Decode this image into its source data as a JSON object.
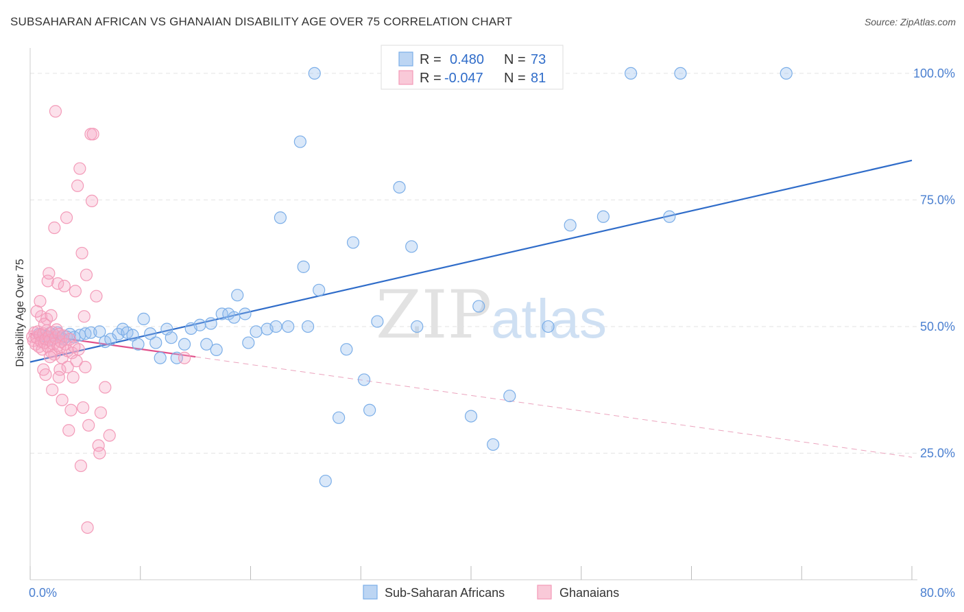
{
  "title": "SUBSAHARAN AFRICAN VS GHANAIAN DISABILITY AGE OVER 75 CORRELATION CHART",
  "source": "Source: ZipAtlas.com",
  "watermark": {
    "zip": "ZIP",
    "atlas": "atlas"
  },
  "chart_data": {
    "type": "scatter",
    "xlim": [
      0,
      80
    ],
    "ylim": [
      0,
      105
    ],
    "ylabel": "Disability Age Over 75",
    "x_ticks": [
      {
        "value": 0,
        "label": "0.0%"
      },
      {
        "value": 80,
        "label": "80.0%"
      }
    ],
    "y_ticks": [
      {
        "value": 25,
        "label": "25.0%"
      },
      {
        "value": 50,
        "label": "50.0%"
      },
      {
        "value": 75,
        "label": "75.0%"
      },
      {
        "value": 100,
        "label": "100.0%"
      }
    ],
    "grid": true,
    "legend_stats": [
      {
        "r_label": "R =",
        "r_value": "0.480",
        "n_label": "N =",
        "n_value": "73"
      },
      {
        "r_label": "R =",
        "r_value": "-0.047",
        "n_label": "N =",
        "n_value": "81"
      }
    ],
    "series": [
      {
        "name": "Sub-Saharan Africans",
        "color": "#7baee8",
        "line_color": "#2f6cc9",
        "trend": {
          "x0": 0,
          "y0": 43.0,
          "x1": 80,
          "y1": 82.8,
          "style": "solid"
        },
        "points": [
          [
            0.8,
            48.5
          ],
          [
            1.2,
            48.2
          ],
          [
            1.5,
            48.0
          ],
          [
            1.8,
            48.7
          ],
          [
            2.0,
            47.5
          ],
          [
            2.2,
            48.3
          ],
          [
            2.5,
            48.8
          ],
          [
            2.8,
            47.8
          ],
          [
            3.0,
            47.5
          ],
          [
            3.3,
            48.0
          ],
          [
            3.6,
            48.5
          ],
          [
            4.0,
            47.9
          ],
          [
            4.5,
            48.3
          ],
          [
            5.0,
            48.6
          ],
          [
            5.5,
            48.8
          ],
          [
            6.3,
            49.0
          ],
          [
            6.8,
            47.0
          ],
          [
            7.3,
            47.5
          ],
          [
            8.0,
            48.5
          ],
          [
            8.4,
            49.5
          ],
          [
            8.8,
            48.8
          ],
          [
            9.3,
            48.3
          ],
          [
            9.8,
            46.5
          ],
          [
            10.3,
            51.5
          ],
          [
            10.9,
            48.6
          ],
          [
            11.4,
            46.8
          ],
          [
            11.8,
            43.8
          ],
          [
            12.4,
            49.5
          ],
          [
            12.8,
            47.8
          ],
          [
            13.3,
            43.8
          ],
          [
            14.0,
            46.5
          ],
          [
            14.6,
            49.6
          ],
          [
            15.4,
            50.3
          ],
          [
            16.0,
            46.5
          ],
          [
            16.4,
            50.6
          ],
          [
            16.9,
            45.4
          ],
          [
            17.4,
            52.5
          ],
          [
            18.0,
            52.5
          ],
          [
            18.5,
            51.8
          ],
          [
            18.8,
            56.2
          ],
          [
            19.5,
            52.5
          ],
          [
            19.8,
            46.8
          ],
          [
            20.5,
            49.0
          ],
          [
            21.5,
            49.5
          ],
          [
            22.3,
            50.0
          ],
          [
            22.7,
            71.5
          ],
          [
            23.4,
            50.0
          ],
          [
            24.5,
            86.5
          ],
          [
            24.8,
            61.8
          ],
          [
            25.2,
            50.0
          ],
          [
            25.8,
            100
          ],
          [
            26.2,
            57.2
          ],
          [
            26.8,
            19.5
          ],
          [
            28.0,
            32.0
          ],
          [
            28.7,
            45.5
          ],
          [
            29.3,
            66.6
          ],
          [
            30.3,
            39.5
          ],
          [
            30.8,
            33.5
          ],
          [
            31.5,
            51.0
          ],
          [
            33.5,
            77.5
          ],
          [
            34.6,
            65.8
          ],
          [
            35.1,
            50.0
          ],
          [
            40.0,
            32.3
          ],
          [
            40.7,
            54.0
          ],
          [
            42.0,
            26.7
          ],
          [
            43.5,
            36.3
          ],
          [
            47.0,
            50.0
          ],
          [
            49.0,
            70.0
          ],
          [
            52.0,
            71.7
          ],
          [
            54.5,
            100
          ],
          [
            58.0,
            71.7
          ],
          [
            59.0,
            100
          ],
          [
            68.6,
            100
          ]
        ]
      },
      {
        "name": "Ghanaians",
        "color": "#f39ab8",
        "line_color": "#e0508a",
        "trend": {
          "x0": 0,
          "y0": 48.6,
          "x1": 80,
          "y1": 24.2,
          "solid_until": 15,
          "style": "solid-then-dashed"
        },
        "points": [
          [
            0.2,
            48.0
          ],
          [
            0.3,
            47.2
          ],
          [
            0.4,
            48.8
          ],
          [
            0.5,
            46.5
          ],
          [
            0.6,
            47.8
          ],
          [
            0.7,
            49.0
          ],
          [
            0.8,
            46.0
          ],
          [
            0.9,
            48.3
          ],
          [
            1.0,
            47.0
          ],
          [
            1.1,
            45.5
          ],
          [
            1.2,
            48.6
          ],
          [
            1.3,
            46.8
          ],
          [
            1.4,
            47.5
          ],
          [
            1.5,
            49.2
          ],
          [
            1.6,
            46.0
          ],
          [
            1.7,
            48.0
          ],
          [
            1.8,
            47.3
          ],
          [
            1.9,
            45.0
          ],
          [
            2.0,
            48.9
          ],
          [
            2.1,
            46.5
          ],
          [
            2.2,
            44.5
          ],
          [
            2.3,
            47.8
          ],
          [
            2.4,
            49.4
          ],
          [
            2.5,
            46.2
          ],
          [
            2.6,
            48.5
          ],
          [
            2.7,
            45.8
          ],
          [
            2.8,
            47.0
          ],
          [
            2.9,
            43.8
          ],
          [
            3.0,
            48.2
          ],
          [
            3.2,
            46.5
          ],
          [
            3.4,
            45.2
          ],
          [
            3.6,
            47.5
          ],
          [
            3.8,
            44.8
          ],
          [
            4.0,
            46.0
          ],
          [
            4.2,
            43.2
          ],
          [
            4.4,
            45.5
          ],
          [
            0.9,
            55.0
          ],
          [
            1.0,
            52.0
          ],
          [
            1.2,
            41.5
          ],
          [
            1.4,
            40.5
          ],
          [
            1.5,
            51.5
          ],
          [
            1.6,
            59.0
          ],
          [
            1.7,
            60.5
          ],
          [
            1.9,
            52.2
          ],
          [
            2.0,
            37.5
          ],
          [
            2.2,
            69.5
          ],
          [
            2.3,
            92.5
          ],
          [
            2.5,
            58.5
          ],
          [
            2.7,
            41.5
          ],
          [
            2.9,
            35.5
          ],
          [
            3.1,
            58.0
          ],
          [
            3.3,
            71.5
          ],
          [
            3.5,
            29.5
          ],
          [
            3.7,
            33.5
          ],
          [
            3.9,
            40.0
          ],
          [
            4.1,
            57.0
          ],
          [
            4.3,
            77.8
          ],
          [
            4.5,
            81.2
          ],
          [
            4.7,
            64.5
          ],
          [
            4.9,
            52.0
          ],
          [
            5.1,
            60.2
          ],
          [
            5.3,
            30.5
          ],
          [
            5.5,
            88.0
          ],
          [
            5.7,
            88.0
          ],
          [
            5.6,
            74.8
          ],
          [
            5.0,
            42.0
          ],
          [
            4.8,
            34.0
          ],
          [
            6.0,
            56.0
          ],
          [
            6.2,
            26.5
          ],
          [
            6.3,
            25.0
          ],
          [
            6.4,
            33.0
          ],
          [
            6.8,
            38.0
          ],
          [
            7.2,
            28.5
          ],
          [
            4.6,
            22.5
          ],
          [
            5.2,
            10.3
          ],
          [
            1.8,
            44.0
          ],
          [
            2.6,
            40.0
          ],
          [
            3.4,
            42.0
          ],
          [
            0.6,
            53.0
          ],
          [
            1.3,
            50.5
          ],
          [
            14.0,
            43.8
          ]
        ]
      }
    ]
  }
}
